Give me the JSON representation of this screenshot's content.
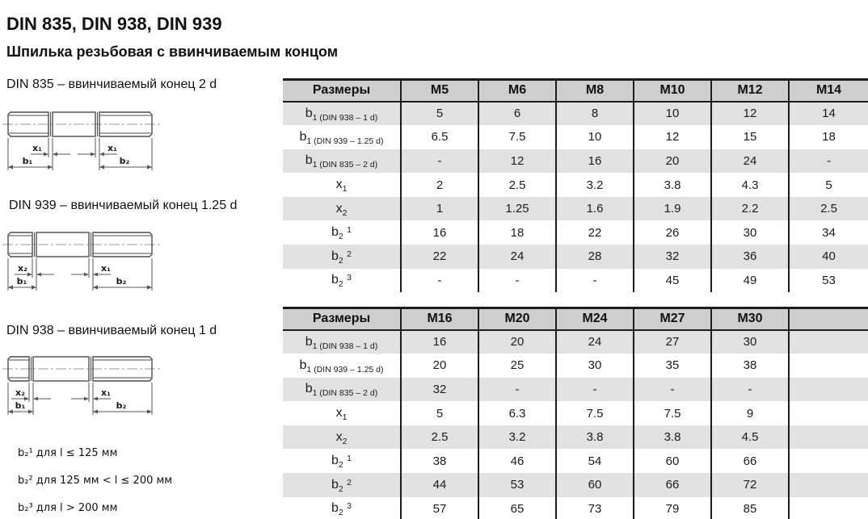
{
  "page": {
    "title": "DIN 835, DIN 938, DIN 939",
    "subtitle": "Шпилька резьбовая с ввинчиваемым концом"
  },
  "drawings": [
    {
      "caption": "DIN 835 – ввинчиваемый конец 2 d",
      "dims": {
        "x_left": "x₁",
        "x_right": "x₁",
        "b_left": "b₁",
        "b_right": "b₂"
      }
    },
    {
      "caption": "DIN 939 – ввинчиваемый конец 1.25 d",
      "dims": {
        "x_left": "x₂",
        "x_right": "x₁",
        "b_left": "b₁",
        "b_right": "b₂"
      }
    },
    {
      "caption": "DIN 938 – ввинчиваемый конец 1 d",
      "dims": {
        "x_left": "x₂",
        "x_right": "x₁",
        "b_left": "b₁",
        "b_right": "b₂"
      }
    }
  ],
  "footnotes": [
    "b₂¹ для l ≤ 125 мм",
    "b₂² для 125 мм < l ≤ 200 мм",
    "b₂³ для l > 200 мм"
  ],
  "tables": [
    {
      "columns": [
        "Размеры",
        "M5",
        "M6",
        "M8",
        "M10",
        "M12",
        "M14"
      ],
      "rows": [
        {
          "label_parts": [
            [
              "n",
              "b"
            ],
            [
              "sub",
              "1 (DIN 938 – 1 d)"
            ]
          ],
          "values": [
            "5",
            "6",
            "8",
            "10",
            "12",
            "14"
          ]
        },
        {
          "label_parts": [
            [
              "n",
              "b"
            ],
            [
              "sub",
              "1 (DIN 939 – 1.25 d)"
            ]
          ],
          "values": [
            "6.5",
            "7.5",
            "10",
            "12",
            "15",
            "18"
          ]
        },
        {
          "label_parts": [
            [
              "n",
              "b"
            ],
            [
              "sub",
              "1 (DIN 835 – 2 d)"
            ]
          ],
          "values": [
            "-",
            "12",
            "16",
            "20",
            "24",
            "-"
          ]
        },
        {
          "label_parts": [
            [
              "n",
              "x"
            ],
            [
              "sub",
              "1"
            ]
          ],
          "values": [
            "2",
            "2.5",
            "3.2",
            "3.8",
            "4.3",
            "5"
          ]
        },
        {
          "label_parts": [
            [
              "n",
              "x"
            ],
            [
              "sub",
              "2"
            ]
          ],
          "values": [
            "1",
            "1.25",
            "1.6",
            "1.9",
            "2.2",
            "2.5"
          ]
        },
        {
          "label_parts": [
            [
              "n",
              "b"
            ],
            [
              "sub",
              "2"
            ],
            [
              "n",
              " "
            ],
            [
              "sup",
              "1"
            ]
          ],
          "values": [
            "16",
            "18",
            "22",
            "26",
            "30",
            "34"
          ]
        },
        {
          "label_parts": [
            [
              "n",
              "b"
            ],
            [
              "sub",
              "2"
            ],
            [
              "n",
              " "
            ],
            [
              "sup",
              "2"
            ]
          ],
          "values": [
            "22",
            "24",
            "28",
            "32",
            "36",
            "40"
          ]
        },
        {
          "label_parts": [
            [
              "n",
              "b"
            ],
            [
              "sub",
              "2"
            ],
            [
              "n",
              " "
            ],
            [
              "sup",
              "3"
            ]
          ],
          "values": [
            "-",
            "-",
            "-",
            "45",
            "49",
            "53"
          ]
        }
      ]
    },
    {
      "columns": [
        "Размеры",
        "M16",
        "M20",
        "M24",
        "M27",
        "M30",
        ""
      ],
      "rows": [
        {
          "label_parts": [
            [
              "n",
              "b"
            ],
            [
              "sub",
              "1 (DIN 938 – 1 d)"
            ]
          ],
          "values": [
            "16",
            "20",
            "24",
            "27",
            "30",
            ""
          ]
        },
        {
          "label_parts": [
            [
              "n",
              "b"
            ],
            [
              "sub",
              "1 (DIN 939 – 1.25 d)"
            ]
          ],
          "values": [
            "20",
            "25",
            "30",
            "35",
            "38",
            ""
          ]
        },
        {
          "label_parts": [
            [
              "n",
              "b"
            ],
            [
              "sub",
              "1 (DIN 835 – 2 d)"
            ]
          ],
          "values": [
            "32",
            "-",
            "-",
            "-",
            "-",
            ""
          ]
        },
        {
          "label_parts": [
            [
              "n",
              "x"
            ],
            [
              "sub",
              "1"
            ]
          ],
          "values": [
            "5",
            "6.3",
            "7.5",
            "7.5",
            "9",
            ""
          ]
        },
        {
          "label_parts": [
            [
              "n",
              "x"
            ],
            [
              "sub",
              "2"
            ]
          ],
          "values": [
            "2.5",
            "3.2",
            "3.8",
            "3.8",
            "4.5",
            ""
          ]
        },
        {
          "label_parts": [
            [
              "n",
              "b"
            ],
            [
              "sub",
              "2"
            ],
            [
              "n",
              " "
            ],
            [
              "sup",
              "1"
            ]
          ],
          "values": [
            "38",
            "46",
            "54",
            "60",
            "66",
            ""
          ]
        },
        {
          "label_parts": [
            [
              "n",
              "b"
            ],
            [
              "sub",
              "2"
            ],
            [
              "n",
              " "
            ],
            [
              "sup",
              "2"
            ]
          ],
          "values": [
            "44",
            "53",
            "60",
            "66",
            "72",
            ""
          ]
        },
        {
          "label_parts": [
            [
              "n",
              "b"
            ],
            [
              "sub",
              "2"
            ],
            [
              "n",
              " "
            ],
            [
              "sup",
              "3"
            ]
          ],
          "values": [
            "57",
            "65",
            "73",
            "79",
            "85",
            ""
          ]
        }
      ]
    }
  ],
  "colors": {
    "header_bg": "#cecece",
    "row_shade": "#e1e1e1",
    "border": "#1c1c1c"
  }
}
